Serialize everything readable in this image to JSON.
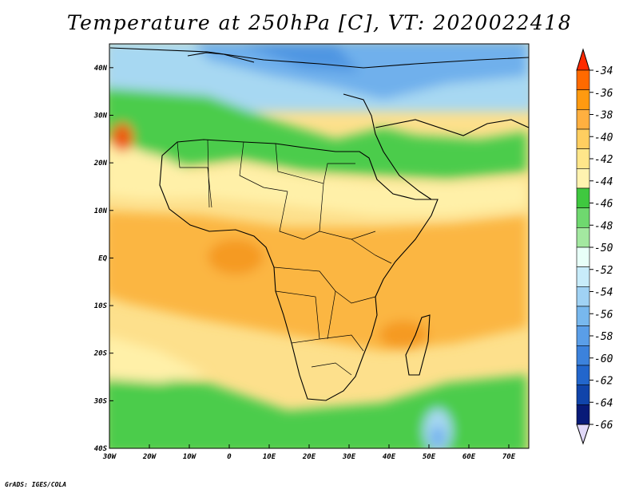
{
  "map": {
    "title": "Temperature at 250hPa [C], VT: 2020022418",
    "credit": "GrADS: IGES/COLA",
    "lon_labels": [
      "30W",
      "20W",
      "10W",
      "0",
      "10E",
      "20E",
      "30E",
      "40E",
      "50E",
      "60E",
      "70E"
    ],
    "lat_labels": [
      "40N",
      "30N",
      "20N",
      "10N",
      "EQ",
      "10S",
      "20S",
      "30S",
      "40S"
    ],
    "extent": {
      "lon_min": -30,
      "lon_max": 75,
      "lat_min": -40,
      "lat_max": 45
    },
    "colorbar": {
      "labels": [
        "-34",
        "-36",
        "-38",
        "-40",
        "-42",
        "-44",
        "-46",
        "-48",
        "-50",
        "-52",
        "-54",
        "-56",
        "-58",
        "-60",
        "-62",
        "-64",
        "-66"
      ],
      "colors": [
        "#ff2a00",
        "#ff6a00",
        "#ff9a10",
        "#ffb040",
        "#ffce60",
        "#ffe68a",
        "#fff3b0",
        "#3fc83f",
        "#6fd86f",
        "#a3e8a0",
        "#e8fff8",
        "#c8ecfa",
        "#a0d2f4",
        "#78b8ee",
        "#5a9ee8",
        "#3c82dc",
        "#2266cc",
        "#1044aa",
        "#081a78",
        "#e0d8f8"
      ]
    }
  }
}
